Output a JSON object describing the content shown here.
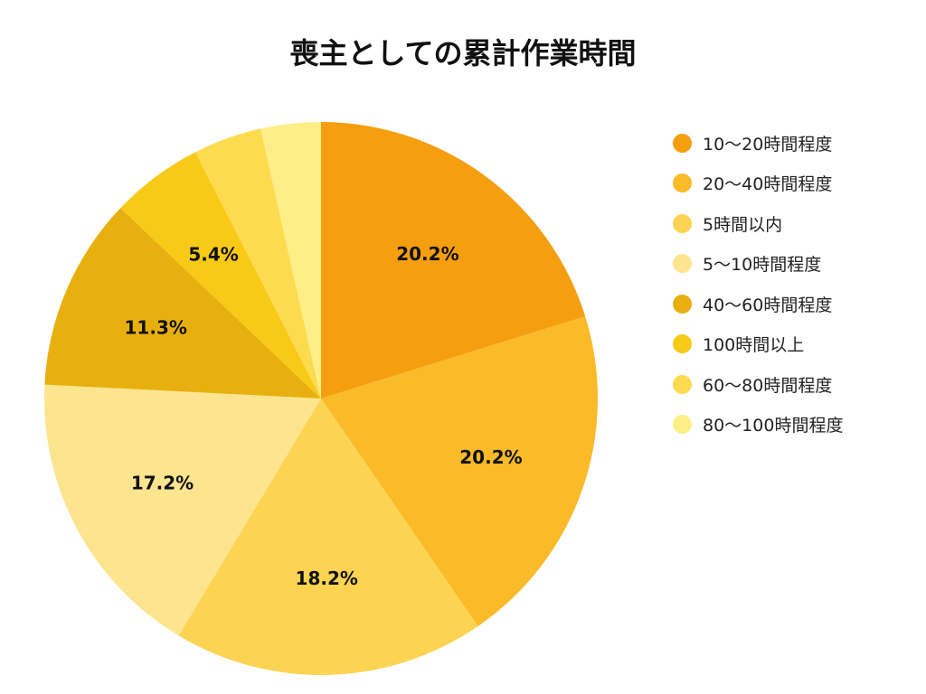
{
  "chart_data": {
    "type": "pie",
    "title": "喪主としての累計作業時間",
    "categories": [
      "10〜20時間程度",
      "20〜40時間程度",
      "5時間以内",
      "5〜10時間程度",
      "40〜60時間程度",
      "100時間以上",
      "60〜80時間程度",
      "80〜100時間程度"
    ],
    "values": [
      20.2,
      20.2,
      18.2,
      17.2,
      11.3,
      5.4,
      4.0,
      3.5
    ],
    "data_labels": [
      "20.2%",
      "20.2%",
      "18.2%",
      "17.2%",
      "11.3%",
      "5.4%",
      "",
      ""
    ],
    "colors": [
      "#F59E0F",
      "#FBBA28",
      "#FDD352",
      "#FDE48E",
      "#E8B00E",
      "#F8C917",
      "#FDDB4E",
      "#FEEE88"
    ],
    "legend_position": "right"
  }
}
